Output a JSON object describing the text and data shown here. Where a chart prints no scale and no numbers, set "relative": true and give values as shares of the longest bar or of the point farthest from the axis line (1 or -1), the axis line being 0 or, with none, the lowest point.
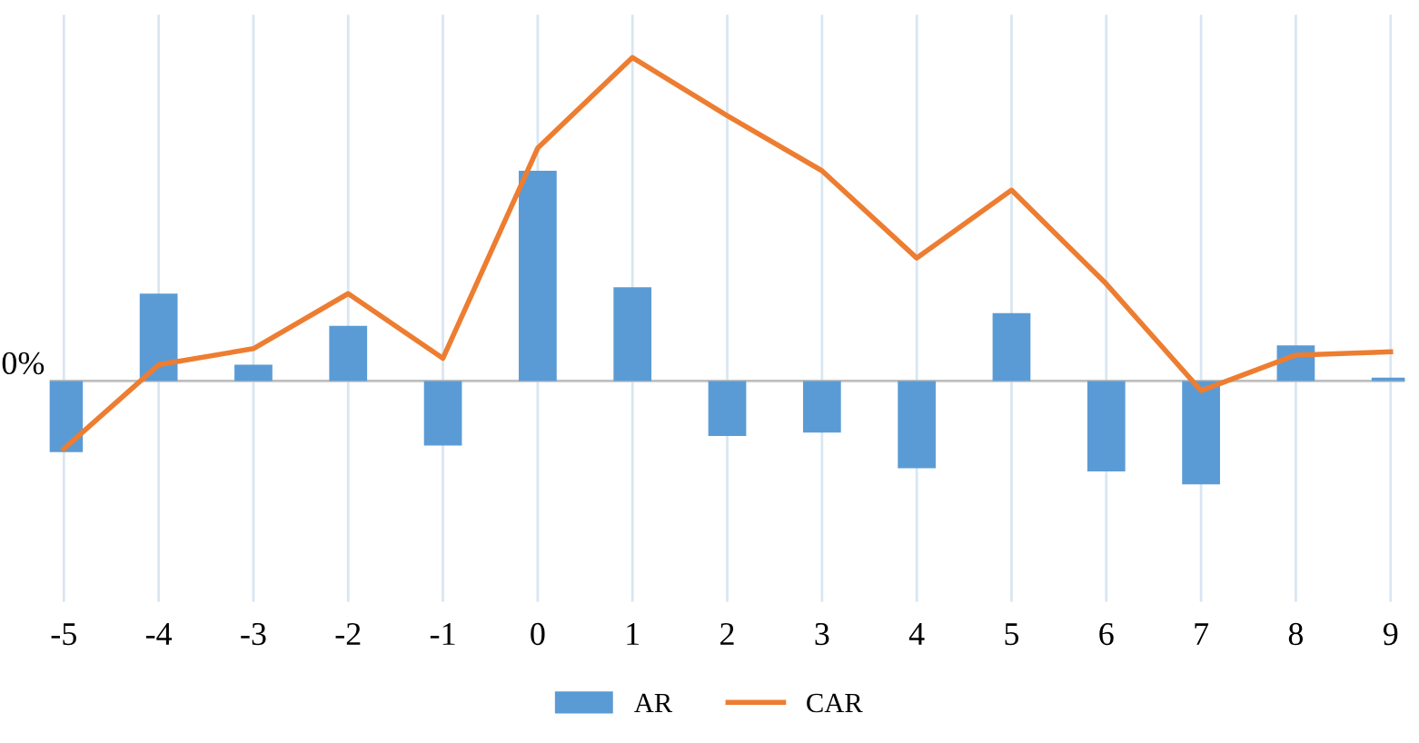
{
  "chart_data": {
    "type": "bar",
    "relative": true,
    "categories": [
      "-5",
      "-4",
      "-3",
      "-2",
      "-1",
      "0",
      "1",
      "2",
      "3",
      "4",
      "5",
      "6",
      "7",
      "8",
      "9"
    ],
    "series": [
      {
        "name": "AR",
        "color": "#5b9bd5",
        "values": [
          -0.22,
          0.27,
          0.05,
          0.17,
          -0.2,
          0.65,
          0.29,
          -0.17,
          -0.16,
          -0.27,
          0.21,
          -0.28,
          -0.32,
          0.11,
          0.01
        ]
      },
      {
        "name": "CAR",
        "type": "line",
        "color": "#ed7d31",
        "values": [
          -0.21,
          0.05,
          0.1,
          0.27,
          0.07,
          0.72,
          1.0,
          0.82,
          0.65,
          0.38,
          0.59,
          0.3,
          -0.03,
          0.08,
          0.09
        ]
      }
    ],
    "annotations": [
      "0%"
    ],
    "grid": "x",
    "legend": "bottom"
  }
}
